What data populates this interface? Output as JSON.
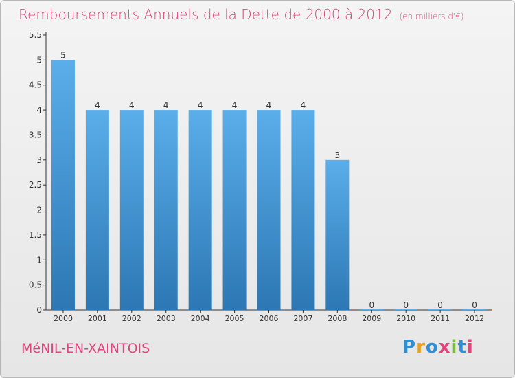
{
  "header": {
    "title": "Remboursements Annuels de la Dette de 2000 à 2012",
    "unit": "(en milliers d'€)"
  },
  "footer": {
    "town": "MéNIL-EN-XAINTOIS",
    "brand": "Proxiti"
  },
  "colors": {
    "title": "#e0457b",
    "bar_top": "#5aaeea",
    "bar_bottom": "#2c77b4",
    "brand_letters": [
      "#2e8fd6",
      "#e8a11a",
      "#2e8fd6",
      "#e0457b",
      "#7dbb3a",
      "#2e8fd6",
      "#e0457b"
    ]
  },
  "chart_data": {
    "type": "bar",
    "categories": [
      "2000",
      "2001",
      "2002",
      "2003",
      "2004",
      "2005",
      "2006",
      "2007",
      "2008",
      "2009",
      "2010",
      "2011",
      "2012"
    ],
    "values": [
      5,
      4,
      4,
      4,
      4,
      4,
      4,
      4,
      3,
      0,
      0,
      0,
      0
    ],
    "data_labels": [
      "5",
      "4",
      "4",
      "4",
      "4",
      "4",
      "4",
      "4",
      "3",
      "0",
      "0",
      "0",
      "0"
    ],
    "yticks": [
      "0",
      "0.5",
      "1",
      "1.5",
      "2",
      "2.5",
      "3",
      "3.5",
      "4",
      "4.5",
      "5",
      "5.5"
    ],
    "ylim": [
      0,
      5.5
    ],
    "grid": false,
    "legend": "none"
  }
}
